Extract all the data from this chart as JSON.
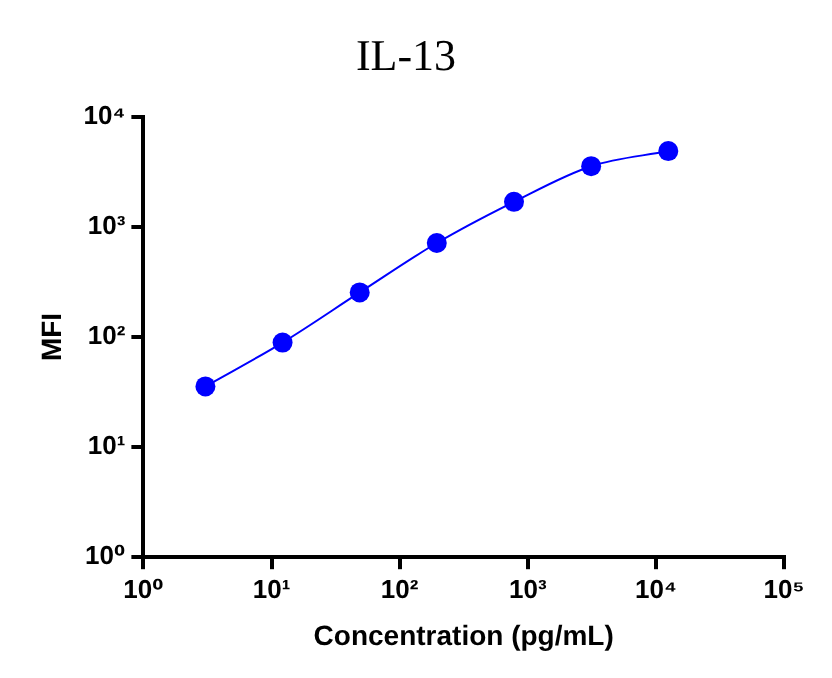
{
  "chart_data": {
    "type": "line",
    "title": "IL-13",
    "xlabel": "Concentration (pg/mL)",
    "ylabel": "MFI",
    "x": [
      3.05,
      12.2,
      48.8,
      195,
      781,
      3125,
      12500
    ],
    "series": [
      {
        "color": "#0000ff",
        "values": [
          35.6,
          89,
          254,
          714,
          1690,
          3560,
          4880
        ]
      }
    ],
    "log": "xy",
    "marker": "circle",
    "line_style": "solid",
    "grid": false,
    "legend": false,
    "xlim": [
      1,
      100000
    ],
    "xticks": [
      {
        "value": 1,
        "label": "10⁰"
      },
      {
        "value": 10,
        "label": "10¹"
      },
      {
        "value": 100,
        "label": "10²"
      },
      {
        "value": 1000,
        "label": "10³"
      },
      {
        "value": 10000,
        "label": "10⁴"
      },
      {
        "value": 100000,
        "label": "10⁵"
      }
    ],
    "ylim": [
      1,
      10000
    ],
    "yticks": [
      {
        "value": 1,
        "label": "10⁰"
      },
      {
        "value": 10,
        "label": "10¹"
      },
      {
        "value": 100,
        "label": "10²"
      },
      {
        "value": 1000,
        "label": "10³"
      },
      {
        "value": 10000,
        "label": "10⁴"
      }
    ]
  }
}
